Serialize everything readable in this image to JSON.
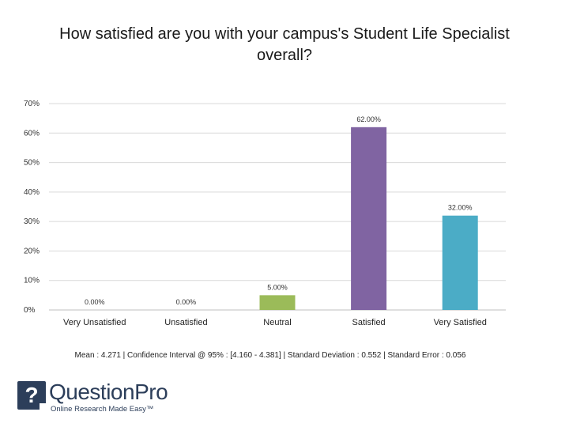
{
  "slide": {
    "title": "How satisfied are you with your campus's Student Life Specialist overall?"
  },
  "chart_data": {
    "type": "bar",
    "title": "How satisfied are you with your campus's Student Life Specialist overall?",
    "categories": [
      "Very Unsatisfied",
      "Unsatisfied",
      "Neutral",
      "Satisfied",
      "Very Satisfied"
    ],
    "values": [
      0,
      0,
      5,
      62,
      32
    ],
    "data_labels": [
      "0.00%",
      "0.00%",
      "5.00%",
      "62.00%",
      "32.00%"
    ],
    "colors": [
      "#4f81bd",
      "#c0504d",
      "#9bbb59",
      "#8064a2",
      "#4bacc6"
    ],
    "ylim": [
      0,
      70
    ],
    "yticks": [
      0,
      10,
      20,
      30,
      40,
      50,
      60,
      70
    ],
    "ytick_labels": [
      "0%",
      "10%",
      "20%",
      "30%",
      "40%",
      "50%",
      "60%",
      "70%"
    ],
    "xlabel": "",
    "ylabel": "",
    "grid": true,
    "legend": "none"
  },
  "stats": {
    "summary": "Mean : 4.271  |  Confidence Interval @ 95% : [4.160 - 4.381]  |  Standard Deviation : 0.552  |  Standard Error : 0.056"
  },
  "logo": {
    "glyph": "?",
    "name": "QuestionPro",
    "tagline": "Online Research Made Easy™",
    "color": "#2c3e5a"
  }
}
